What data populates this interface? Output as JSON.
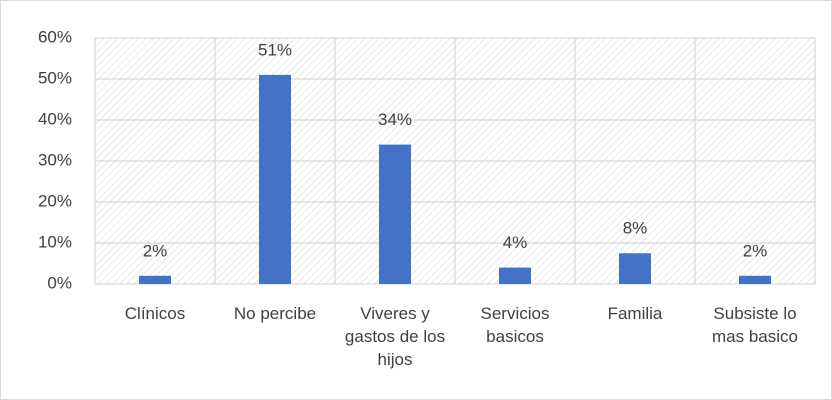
{
  "chart_data": {
    "type": "bar",
    "categories": [
      "Clínicos",
      "No percibe",
      "Viveres y gastos de los hijos",
      "Servicios basicos",
      "Familia",
      "Subsiste lo mas basico"
    ],
    "values": [
      2,
      51,
      34,
      4,
      7.5,
      2
    ],
    "value_labels": [
      "2%",
      "51%",
      "34%",
      "4%",
      "8%",
      "2%"
    ],
    "color": "#4472c4",
    "ylim": [
      0,
      60
    ],
    "yticks": [
      {
        "value": 0,
        "label": "0%"
      },
      {
        "value": 10,
        "label": "10%"
      },
      {
        "value": 20,
        "label": "20%"
      },
      {
        "value": 30,
        "label": "30%"
      },
      {
        "value": 40,
        "label": "40%"
      },
      {
        "value": 50,
        "label": "50%"
      },
      {
        "value": 60,
        "label": "60%"
      }
    ],
    "grid": true
  }
}
